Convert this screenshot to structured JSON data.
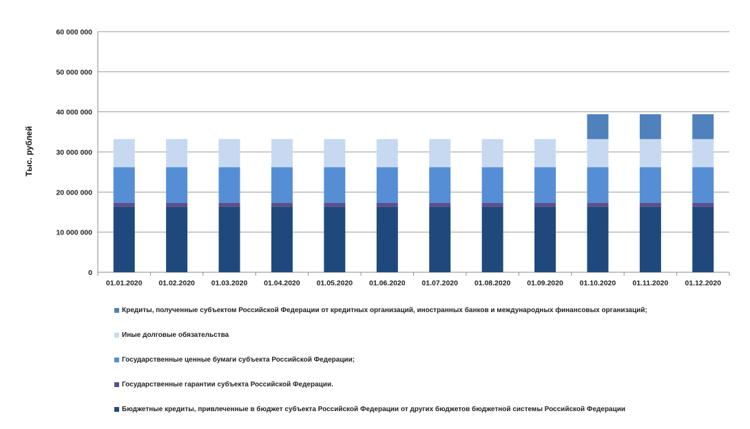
{
  "chart_data": {
    "type": "bar",
    "stacked": true,
    "ylabel": "Тыс. рублей",
    "xlabel": "",
    "ylim": [
      0,
      60000000
    ],
    "yticks": [
      0,
      10000000,
      20000000,
      30000000,
      40000000,
      50000000,
      60000000
    ],
    "ytick_labels": [
      "0",
      "10 000 000",
      "20 000 000",
      "30 000 000",
      "40 000 000",
      "50 000 000",
      "60 000 000"
    ],
    "grid": true,
    "legend_position": "bottom",
    "categories": [
      "01.01.2020",
      "01.02.2020",
      "01.03.2020",
      "01.04.2020",
      "01.05.2020",
      "01.06.2020",
      "01.07.2020",
      "01.08.2020",
      "01.09.2020",
      "01.10.2020",
      "01.11.2020",
      "01.12.2020"
    ],
    "series": [
      {
        "name": "Бюджетные кредиты, привлеченные в бюджет субъекта Российской Федерации от других бюджетов бюджетной системы Российской Федерации",
        "color": "#1f497d",
        "values": [
          16300000,
          16300000,
          16300000,
          16300000,
          16300000,
          16300000,
          16300000,
          16300000,
          16300000,
          16300000,
          16300000,
          16300000
        ]
      },
      {
        "name": "Государственные гарантии субъекта Российской Федерации.",
        "color": "#5b4f8e",
        "values": [
          1000000,
          1000000,
          1000000,
          1000000,
          1000000,
          1000000,
          1000000,
          1000000,
          1000000,
          1000000,
          1000000,
          1000000
        ]
      },
      {
        "name": "Государственные ценные бумаги субъекта Российской Федерации;",
        "color": "#558ed5",
        "values": [
          8900000,
          8900000,
          8900000,
          8900000,
          8900000,
          8900000,
          8900000,
          8900000,
          8900000,
          8900000,
          8900000,
          8900000
        ]
      },
      {
        "name": "Иные долговые обязательства",
        "color": "#c6d9f1",
        "values": [
          7000000,
          7000000,
          7000000,
          7000000,
          7000000,
          7000000,
          7000000,
          7000000,
          7000000,
          7000000,
          7000000,
          7000000
        ]
      },
      {
        "name": "Кредиты, полученные субъектом Российской Федерации от кредитных организаций, иностранных банков и международных финансовых организаций;",
        "color": "#4f81bd",
        "values": [
          0,
          0,
          0,
          0,
          0,
          0,
          0,
          0,
          0,
          6200000,
          6200000,
          6200000
        ]
      }
    ],
    "legend_order": [
      4,
      3,
      2,
      1,
      0
    ]
  }
}
